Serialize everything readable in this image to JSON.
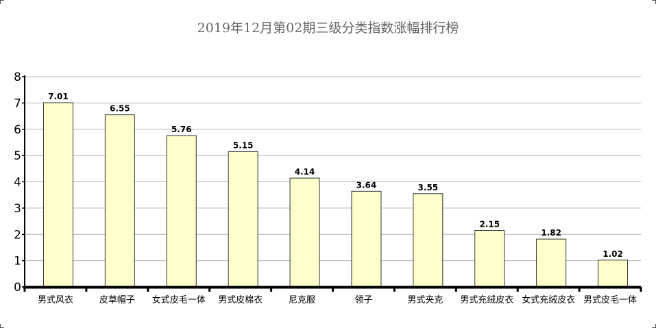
{
  "chart_data": {
    "type": "bar",
    "title": "2019年12月第02期三级分类指数涨幅排行榜",
    "xlabel": "",
    "ylabel": "",
    "ylim": [
      0,
      8
    ],
    "yticks": [
      "0",
      "1",
      "2",
      "3",
      "4",
      "5",
      "6",
      "7",
      "8"
    ],
    "grid": true,
    "legend": "none",
    "categories": [
      "男式风衣",
      "皮草帽子",
      "女式皮毛一体",
      "男式皮棉衣",
      "尼克服",
      "领子",
      "男式夹克",
      "男式充绒皮衣",
      "女式充绒皮衣",
      "男式皮毛一体"
    ],
    "values": [
      7.01,
      6.55,
      5.76,
      5.15,
      4.14,
      3.64,
      3.55,
      2.15,
      1.82,
      1.02
    ],
    "data_labels": [
      "7.01",
      "6.55",
      "5.76",
      "5.15",
      "4.14",
      "3.64",
      "3.55",
      "2.15",
      "1.82",
      "1.02"
    ],
    "colors": {
      "bar_fill": "#ffffcc",
      "bar_stroke": "#333333",
      "grid": "#b4b4b4",
      "axis": "#000000",
      "title": "#666666"
    }
  }
}
